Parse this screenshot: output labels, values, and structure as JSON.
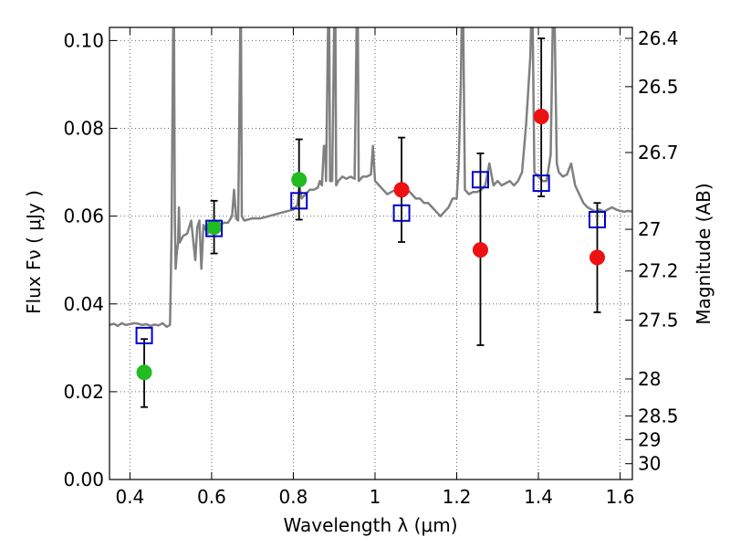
{
  "chart_data": {
    "type": "scatter",
    "xlabel": "Wavelength  λ (μm)",
    "ylabel": "Flux  Fν ( μJy )",
    "ylabel_right": "Magnitude (AB)",
    "xlim": [
      0.35,
      1.63
    ],
    "ylim": [
      0.0,
      0.103
    ],
    "x_ticks": [
      0.4,
      0.6,
      0.8,
      1.0,
      1.2,
      1.4,
      1.6
    ],
    "x_tick_labels": [
      "0.4",
      "0.6",
      "0.8",
      "1",
      "1.2",
      "1.4",
      "1.6"
    ],
    "y_ticks": [
      0.0,
      0.02,
      0.04,
      0.06,
      0.08,
      0.1
    ],
    "y_tick_labels": [
      "0.00",
      "0.02",
      "0.04",
      "0.06",
      "0.08",
      "0.10"
    ],
    "right_ticks": [
      {
        "label": "26.4",
        "flux": 0.1005
      },
      {
        "label": "26.5",
        "flux": 0.0895
      },
      {
        "label": "26.7",
        "flux": 0.0745
      },
      {
        "label": "27",
        "flux": 0.057
      },
      {
        "label": "27.2",
        "flux": 0.0475
      },
      {
        "label": "27.5",
        "flux": 0.0363
      },
      {
        "label": "28",
        "flux": 0.0229
      },
      {
        "label": "28.5",
        "flux": 0.0145
      },
      {
        "label": "29",
        "flux": 0.0091
      },
      {
        "label": "30",
        "flux": 0.0036
      }
    ],
    "grid": true,
    "colors": {
      "model": "#808080",
      "green": "#22bb22",
      "red": "#ee1111",
      "squares": "#0000cc",
      "errorbar": "#000000",
      "grid": "#666666"
    },
    "model_spectrum": [
      [
        0.35,
        0.0352
      ],
      [
        0.36,
        0.0355
      ],
      [
        0.37,
        0.035
      ],
      [
        0.38,
        0.0356
      ],
      [
        0.39,
        0.0352
      ],
      [
        0.4,
        0.0354
      ],
      [
        0.41,
        0.0356
      ],
      [
        0.42,
        0.0355
      ],
      [
        0.43,
        0.0352
      ],
      [
        0.44,
        0.0354
      ],
      [
        0.45,
        0.035
      ],
      [
        0.46,
        0.0353
      ],
      [
        0.47,
        0.0351
      ],
      [
        0.48,
        0.0356
      ],
      [
        0.49,
        0.0348
      ],
      [
        0.498,
        0.0352
      ],
      [
        0.5,
        0.044
      ],
      [
        0.502,
        0.056
      ],
      [
        0.504,
        0.08
      ],
      [
        0.506,
        0.103
      ],
      [
        0.508,
        0.103
      ],
      [
        0.51,
        0.06
      ],
      [
        0.512,
        0.048
      ],
      [
        0.515,
        0.052
      ],
      [
        0.518,
        0.054
      ],
      [
        0.52,
        0.062
      ],
      [
        0.522,
        0.054
      ],
      [
        0.53,
        0.0555
      ],
      [
        0.54,
        0.056
      ],
      [
        0.55,
        0.059
      ],
      [
        0.56,
        0.05
      ],
      [
        0.565,
        0.0575
      ],
      [
        0.57,
        0.059
      ],
      [
        0.575,
        0.048
      ],
      [
        0.58,
        0.058
      ],
      [
        0.59,
        0.056
      ],
      [
        0.6,
        0.0575
      ],
      [
        0.61,
        0.057
      ],
      [
        0.62,
        0.058
      ],
      [
        0.63,
        0.0585
      ],
      [
        0.64,
        0.0585
      ],
      [
        0.65,
        0.06
      ],
      [
        0.655,
        0.066
      ],
      [
        0.66,
        0.0595
      ],
      [
        0.665,
        0.059
      ],
      [
        0.668,
        0.085
      ],
      [
        0.67,
        0.103
      ],
      [
        0.672,
        0.103
      ],
      [
        0.674,
        0.06
      ],
      [
        0.68,
        0.059
      ],
      [
        0.7,
        0.0595
      ],
      [
        0.72,
        0.0595
      ],
      [
        0.74,
        0.06
      ],
      [
        0.76,
        0.0605
      ],
      [
        0.78,
        0.061
      ],
      [
        0.8,
        0.0615
      ],
      [
        0.81,
        0.0625
      ],
      [
        0.815,
        0.067
      ],
      [
        0.82,
        0.064
      ],
      [
        0.83,
        0.065
      ],
      [
        0.84,
        0.066
      ],
      [
        0.85,
        0.066
      ],
      [
        0.86,
        0.0665
      ],
      [
        0.865,
        0.068
      ],
      [
        0.87,
        0.067
      ],
      [
        0.875,
        0.076
      ],
      [
        0.878,
        0.076
      ],
      [
        0.88,
        0.068
      ],
      [
        0.885,
        0.103
      ],
      [
        0.888,
        0.103
      ],
      [
        0.89,
        0.068
      ],
      [
        0.895,
        0.068
      ],
      [
        0.9,
        0.103
      ],
      [
        0.903,
        0.103
      ],
      [
        0.905,
        0.067
      ],
      [
        0.91,
        0.068
      ],
      [
        0.92,
        0.069
      ],
      [
        0.93,
        0.0685
      ],
      [
        0.94,
        0.069
      ],
      [
        0.95,
        0.0685
      ],
      [
        0.955,
        0.103
      ],
      [
        0.958,
        0.103
      ],
      [
        0.96,
        0.068
      ],
      [
        0.97,
        0.069
      ],
      [
        0.98,
        0.069
      ],
      [
        0.99,
        0.0695
      ],
      [
        0.995,
        0.076
      ],
      [
        1.0,
        0.068
      ],
      [
        1.01,
        0.067
      ],
      [
        1.02,
        0.066
      ],
      [
        1.03,
        0.065
      ],
      [
        1.04,
        0.0655
      ],
      [
        1.05,
        0.066
      ],
      [
        1.06,
        0.0655
      ],
      [
        1.07,
        0.065
      ],
      [
        1.08,
        0.066
      ],
      [
        1.09,
        0.065
      ],
      [
        1.1,
        0.064
      ],
      [
        1.11,
        0.064
      ],
      [
        1.12,
        0.063
      ],
      [
        1.13,
        0.063
      ],
      [
        1.14,
        0.062
      ],
      [
        1.15,
        0.061
      ],
      [
        1.16,
        0.06
      ],
      [
        1.17,
        0.061
      ],
      [
        1.18,
        0.062
      ],
      [
        1.19,
        0.064
      ],
      [
        1.2,
        0.064
      ],
      [
        1.205,
        0.072
      ],
      [
        1.21,
        0.09
      ],
      [
        1.212,
        0.103
      ],
      [
        1.216,
        0.103
      ],
      [
        1.22,
        0.066
      ],
      [
        1.23,
        0.065
      ],
      [
        1.24,
        0.0655
      ],
      [
        1.25,
        0.0655
      ],
      [
        1.26,
        0.066
      ],
      [
        1.27,
        0.067
      ],
      [
        1.28,
        0.072
      ],
      [
        1.29,
        0.067
      ],
      [
        1.3,
        0.068
      ],
      [
        1.31,
        0.067
      ],
      [
        1.32,
        0.0675
      ],
      [
        1.33,
        0.068
      ],
      [
        1.34,
        0.067
      ],
      [
        1.35,
        0.068
      ],
      [
        1.36,
        0.07
      ],
      [
        1.37,
        0.081
      ],
      [
        1.38,
        0.096
      ],
      [
        1.382,
        0.103
      ],
      [
        1.386,
        0.103
      ],
      [
        1.39,
        0.07
      ],
      [
        1.4,
        0.069
      ],
      [
        1.41,
        0.068
      ],
      [
        1.42,
        0.068
      ],
      [
        1.43,
        0.074
      ],
      [
        1.435,
        0.103
      ],
      [
        1.44,
        0.103
      ],
      [
        1.445,
        0.072
      ],
      [
        1.45,
        0.07
      ],
      [
        1.46,
        0.069
      ],
      [
        1.47,
        0.0695
      ],
      [
        1.48,
        0.072
      ],
      [
        1.49,
        0.067
      ],
      [
        1.5,
        0.065
      ],
      [
        1.51,
        0.063
      ],
      [
        1.52,
        0.062
      ],
      [
        1.53,
        0.0615
      ],
      [
        1.54,
        0.061
      ],
      [
        1.55,
        0.0615
      ],
      [
        1.56,
        0.061
      ],
      [
        1.57,
        0.0615
      ],
      [
        1.58,
        0.062
      ],
      [
        1.59,
        0.0615
      ],
      [
        1.6,
        0.0612
      ],
      [
        1.61,
        0.061
      ],
      [
        1.62,
        0.0612
      ],
      [
        1.63,
        0.061
      ]
    ],
    "series": [
      {
        "marker": "circle",
        "color_key": "green",
        "points": [
          {
            "x": 0.435,
            "y": 0.0244,
            "err_low": 0.0165,
            "err_high": 0.032
          },
          {
            "x": 0.606,
            "y": 0.0575,
            "err_low": 0.0515,
            "err_high": 0.0635
          },
          {
            "x": 0.814,
            "y": 0.0683,
            "err_low": 0.0592,
            "err_high": 0.0775
          }
        ]
      },
      {
        "marker": "circle",
        "color_key": "red",
        "points": [
          {
            "x": 1.065,
            "y": 0.066,
            "err_low": 0.0541,
            "err_high": 0.0779
          },
          {
            "x": 1.258,
            "y": 0.0523,
            "err_low": 0.0306,
            "err_high": 0.0743
          },
          {
            "x": 1.407,
            "y": 0.0827,
            "err_low": 0.0645,
            "err_high": 0.1005
          },
          {
            "x": 1.544,
            "y": 0.0506,
            "err_low": 0.0381,
            "err_high": 0.063
          }
        ]
      },
      {
        "marker": "square",
        "color_key": "squares",
        "points": [
          {
            "x": 0.435,
            "y": 0.0328
          },
          {
            "x": 0.606,
            "y": 0.0572
          },
          {
            "x": 0.814,
            "y": 0.0635
          },
          {
            "x": 1.065,
            "y": 0.0607
          },
          {
            "x": 1.258,
            "y": 0.0683
          },
          {
            "x": 1.407,
            "y": 0.0675
          },
          {
            "x": 1.544,
            "y": 0.0592
          }
        ]
      }
    ]
  }
}
